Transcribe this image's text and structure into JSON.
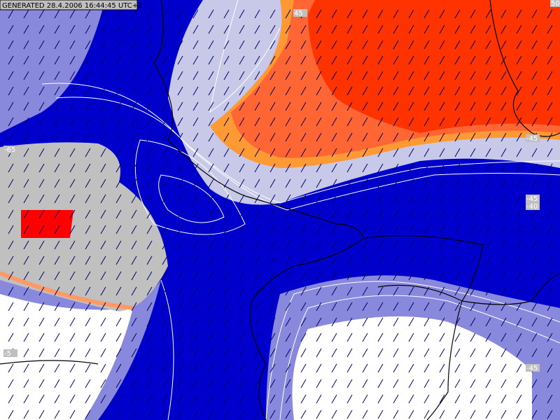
{
  "header": {
    "generated": "GENERATED 28.4.2006 16:44:45 UTC+2"
  },
  "contour_labels": [
    "-65",
    "-45",
    "-40",
    "-45",
    "50",
    "-5",
    "-45",
    "45"
  ]
}
